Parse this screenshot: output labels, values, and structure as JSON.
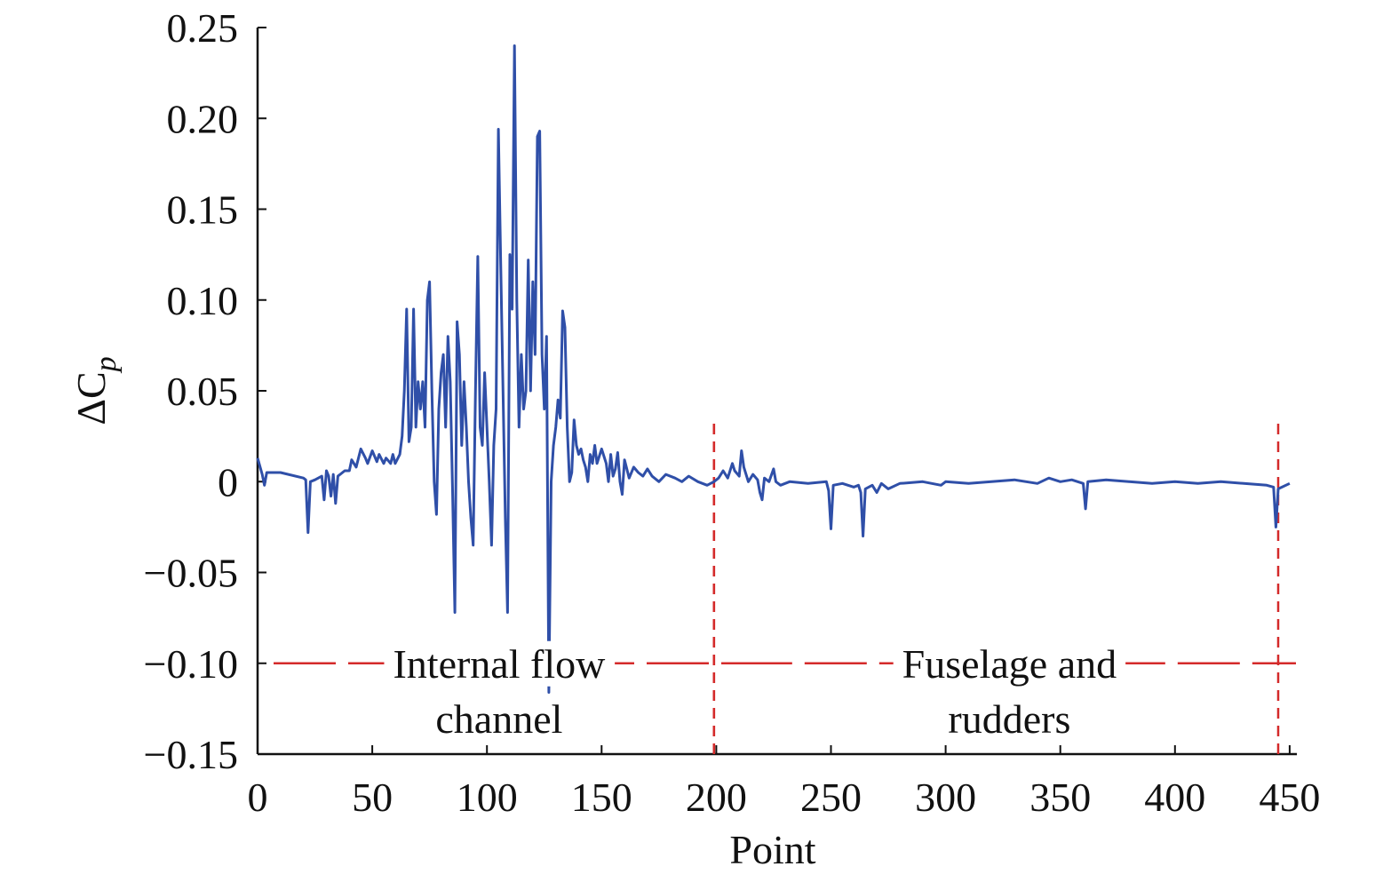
{
  "chart_data": {
    "type": "line",
    "x_label": "Point",
    "y_label": "ΔC",
    "y_label_sub": "p",
    "xlim": [
      0,
      452
    ],
    "ylim": [
      -0.15,
      0.25
    ],
    "xticks": [
      0,
      50,
      100,
      150,
      200,
      250,
      300,
      350,
      400,
      450
    ],
    "yticks": [
      {
        "value": -0.15,
        "label": "−0.15"
      },
      {
        "value": -0.1,
        "label": "−0.10"
      },
      {
        "value": -0.05,
        "label": "−0.05"
      },
      0,
      0.05,
      {
        "value": 0.1,
        "label": "0.10"
      },
      0.15,
      {
        "value": 0.2,
        "label": "0.20"
      },
      0.25
    ],
    "regions": [
      {
        "lines": [
          "Internal flow",
          "channel"
        ],
        "start": 0,
        "end": 199,
        "level": -0.1
      },
      {
        "lines": [
          "Fuselage and",
          "rudders"
        ],
        "start": 199,
        "end": 445,
        "level": -0.1
      }
    ],
    "region_color": "#d42a2a",
    "series": [
      {
        "color": "#2f4fa8",
        "x": [
          0,
          2,
          3,
          4,
          10,
          20,
          21,
          22,
          23,
          25,
          28,
          29,
          30,
          31,
          32,
          33,
          34,
          35,
          38,
          40,
          41,
          43,
          45,
          47,
          48,
          50,
          52,
          53,
          55,
          56,
          58,
          59,
          60,
          62,
          63,
          64,
          65,
          66,
          67,
          68,
          69,
          70,
          71,
          72,
          73,
          74,
          75,
          76,
          77,
          78,
          79,
          80,
          81,
          82,
          83,
          84,
          85,
          86,
          87,
          88,
          89,
          90,
          91,
          92,
          93,
          94,
          95,
          96,
          97,
          98,
          99,
          100,
          101,
          102,
          103,
          104,
          105,
          106,
          107,
          108,
          109,
          110,
          111,
          112,
          113,
          114,
          115,
          116,
          117,
          118,
          119,
          120,
          121,
          122,
          123,
          124,
          125,
          126,
          127,
          128,
          129,
          130,
          131,
          132,
          133,
          134,
          135,
          136,
          137,
          138,
          139,
          140,
          141,
          142,
          143,
          144,
          145,
          146,
          147,
          148,
          150,
          152,
          153,
          154,
          155,
          156,
          157,
          158,
          159,
          160,
          162,
          164,
          166,
          168,
          170,
          172,
          175,
          178,
          182,
          185,
          188,
          192,
          196,
          199,
          201,
          203,
          205,
          207,
          208,
          210,
          211,
          212,
          214,
          216,
          218,
          219,
          220,
          221,
          223,
          225,
          226,
          228,
          232,
          240,
          248,
          249,
          250,
          251,
          255,
          260,
          262,
          263,
          264,
          265,
          268,
          270,
          272,
          275,
          280,
          290,
          298,
          300,
          310,
          320,
          330,
          340,
          345,
          350,
          355,
          360,
          361,
          362,
          370,
          380,
          390,
          400,
          410,
          420,
          430,
          440,
          443,
          444,
          445,
          450
        ],
        "values": [
          0.013,
          0.004,
          -0.002,
          0.005,
          0.005,
          0.002,
          0.001,
          -0.028,
          0.0,
          0.001,
          0.003,
          -0.01,
          0.006,
          0.003,
          -0.008,
          0.004,
          -0.012,
          0.003,
          0.006,
          0.006,
          0.012,
          0.008,
          0.018,
          0.013,
          0.01,
          0.017,
          0.011,
          0.015,
          0.01,
          0.013,
          0.01,
          0.015,
          0.01,
          0.015,
          0.025,
          0.05,
          0.095,
          0.022,
          0.03,
          0.095,
          0.03,
          0.055,
          0.04,
          0.055,
          0.03,
          0.1,
          0.11,
          0.05,
          0.0,
          -0.018,
          0.04,
          0.06,
          0.07,
          0.03,
          0.08,
          0.055,
          -0.005,
          -0.072,
          0.088,
          0.07,
          0.02,
          0.055,
          0.03,
          0.0,
          -0.02,
          -0.035,
          0.05,
          0.124,
          0.03,
          0.02,
          0.06,
          0.03,
          0.0,
          -0.035,
          0.02,
          0.04,
          0.194,
          0.12,
          0.05,
          -0.02,
          -0.072,
          0.125,
          0.095,
          0.24,
          0.1,
          0.03,
          0.07,
          0.04,
          0.05,
          0.122,
          0.05,
          0.11,
          0.07,
          0.19,
          0.193,
          0.07,
          0.04,
          0.08,
          -0.116,
          0.0,
          0.02,
          0.03,
          0.045,
          0.035,
          0.094,
          0.085,
          0.03,
          0.0,
          0.005,
          0.034,
          0.02,
          0.015,
          0.018,
          0.012,
          0.008,
          0.0,
          0.015,
          0.01,
          0.02,
          0.01,
          0.018,
          0.01,
          0.0,
          0.015,
          0.003,
          0.007,
          0.016,
          0.0,
          -0.007,
          0.012,
          0.002,
          0.008,
          0.005,
          0.003,
          0.007,
          0.003,
          0.0,
          0.004,
          0.002,
          0.0,
          0.003,
          0.0,
          -0.002,
          0.0,
          0.002,
          0.006,
          0.002,
          0.01,
          0.006,
          0.003,
          0.017,
          0.008,
          0.0,
          0.004,
          0.001,
          -0.006,
          -0.01,
          0.002,
          0.0,
          0.007,
          0.0,
          -0.002,
          0.0,
          -0.001,
          0.0,
          -0.005,
          -0.026,
          -0.002,
          -0.001,
          -0.003,
          -0.002,
          -0.006,
          -0.03,
          -0.004,
          -0.002,
          -0.006,
          -0.001,
          -0.004,
          -0.001,
          0.0,
          -0.002,
          0.0,
          -0.001,
          0.0,
          0.001,
          -0.001,
          0.002,
          0.0,
          0.001,
          -0.001,
          -0.015,
          0.0,
          0.001,
          0.0,
          -0.001,
          0.0,
          -0.001,
          0.0,
          -0.001,
          -0.002,
          -0.003,
          -0.025,
          -0.004,
          -0.001
        ]
      }
    ]
  }
}
